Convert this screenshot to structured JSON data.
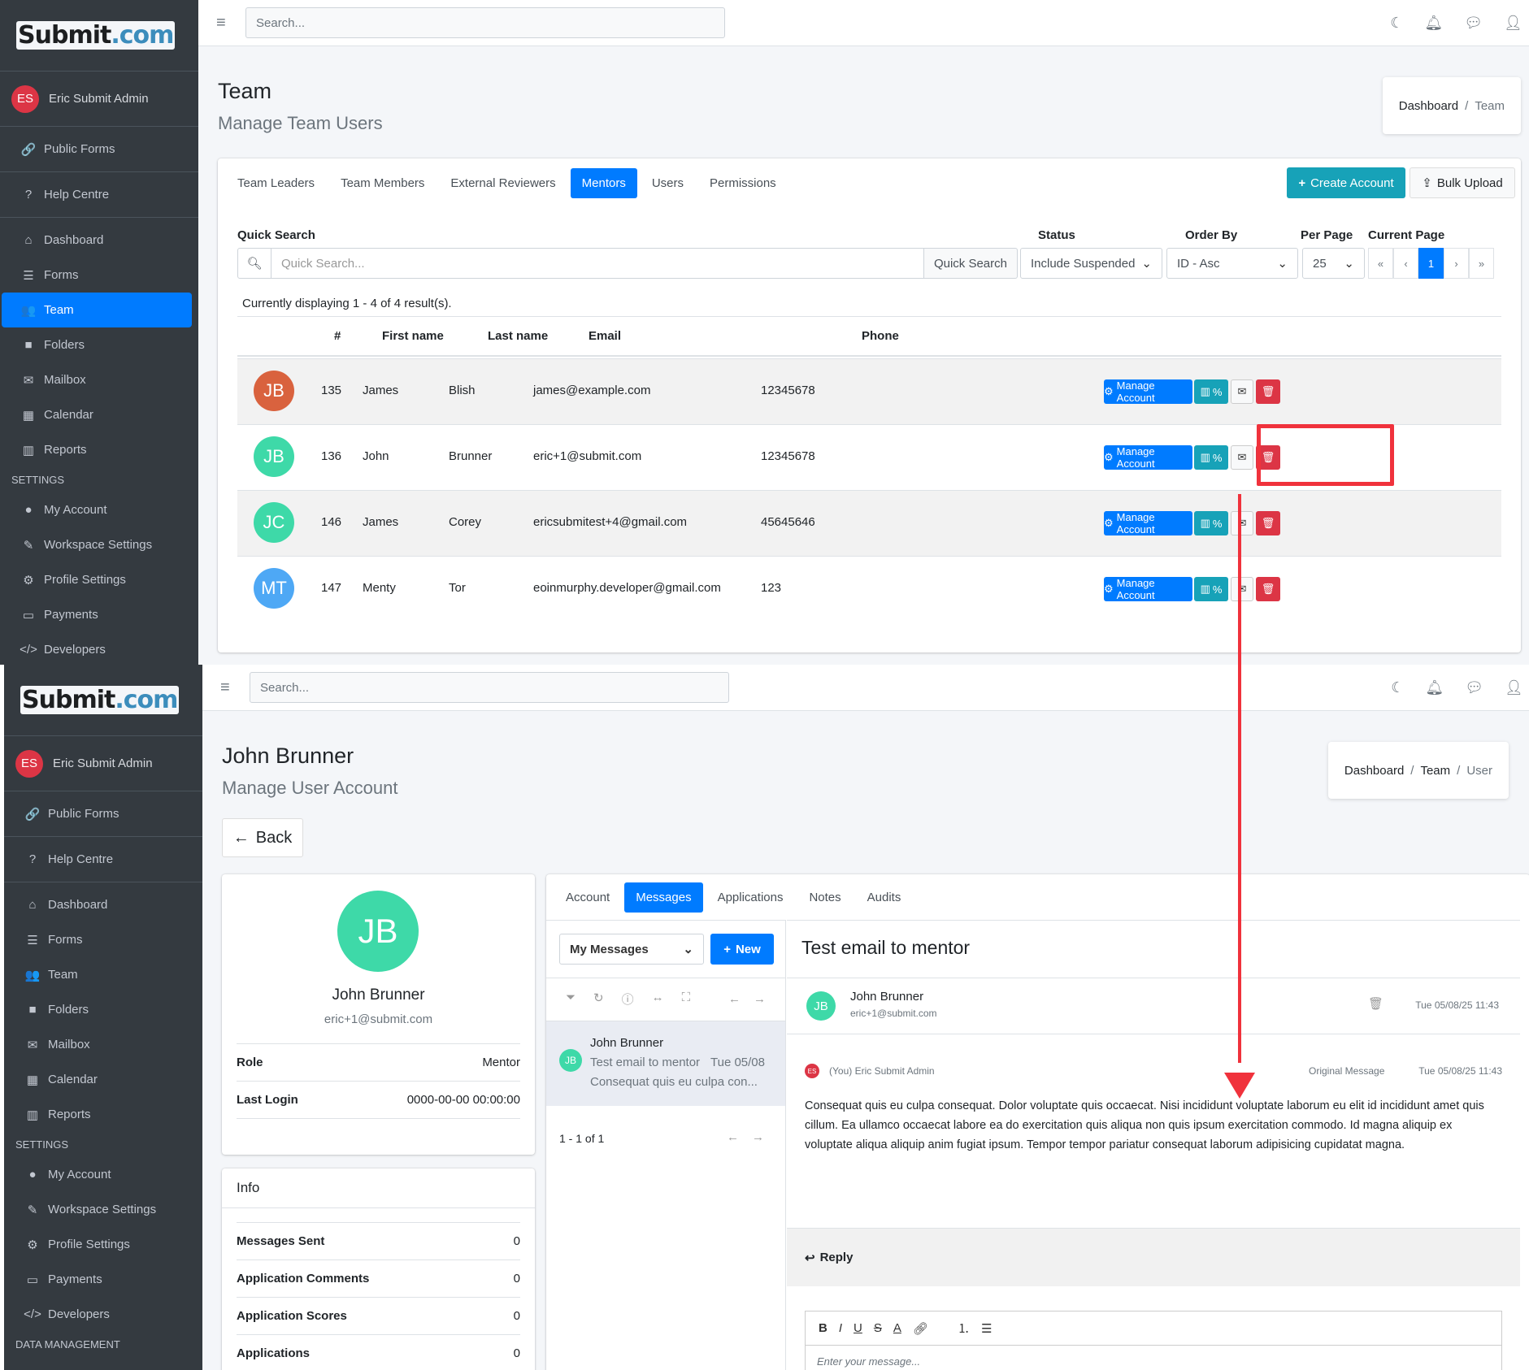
{
  "brand": {
    "name": "Submit",
    "suffix": ".com"
  },
  "sidebar": {
    "user": {
      "initials": "ES",
      "name": "Eric Submit Admin"
    },
    "top": [
      {
        "label": "Public Forms",
        "icon": "link-icon"
      },
      {
        "label": "Help Centre",
        "icon": "question-icon"
      }
    ],
    "main": [
      {
        "label": "Dashboard",
        "icon": "home-icon"
      },
      {
        "label": "Forms",
        "icon": "list-icon"
      },
      {
        "label": "Team",
        "icon": "users-icon"
      },
      {
        "label": "Folders",
        "icon": "folder-icon"
      },
      {
        "label": "Mailbox",
        "icon": "envelope-icon"
      },
      {
        "label": "Calendar",
        "icon": "calendar-icon"
      },
      {
        "label": "Reports",
        "icon": "chart-icon"
      }
    ],
    "settings_header": "SETTINGS",
    "settings": [
      {
        "label": "My Account",
        "icon": "user-circle-icon"
      },
      {
        "label": "Workspace Settings",
        "icon": "brush-icon"
      },
      {
        "label": "Profile Settings",
        "icon": "gear-icon"
      },
      {
        "label": "Payments",
        "icon": "money-icon"
      },
      {
        "label": "Developers",
        "icon": "code-icon"
      }
    ],
    "data_header": "DATA MANAGEMENT",
    "active_top": "Team"
  },
  "topbar": {
    "search_placeholder": "Search..."
  },
  "team_page": {
    "title": "Team",
    "subtitle": "Manage Team Users",
    "breadcrumb": [
      "Dashboard",
      "Team"
    ],
    "tabs": [
      "Team Leaders",
      "Team Members",
      "External Reviewers",
      "Mentors",
      "Users",
      "Permissions"
    ],
    "active_tab": "Mentors",
    "create_label": "Create Account",
    "bulk_label": "Bulk Upload",
    "quick_search_label": "Quick Search",
    "quick_search_placeholder": "Quick Search...",
    "quick_search_button": "Quick Search",
    "status_label": "Status",
    "status_value": "Include Suspended",
    "order_label": "Order By",
    "order_value": "ID - Asc",
    "per_page_label": "Per Page",
    "per_page_value": "25",
    "current_page_label": "Current Page",
    "pagination": [
      "«",
      "‹",
      "1",
      "›",
      "»"
    ],
    "result_text": "Currently displaying 1 - 4 of 4 result(s).",
    "columns": [
      "#",
      "First name",
      "Last name",
      "Email",
      "Phone"
    ],
    "rows": [
      {
        "initials": "JB",
        "color": "#d9623e",
        "id": "135",
        "first": "James",
        "last": "Blish",
        "email": "james@example.com",
        "phone": "12345678"
      },
      {
        "initials": "JB",
        "color": "#3ed9a8",
        "id": "136",
        "first": "John",
        "last": "Brunner",
        "email": "eric+1@submit.com",
        "phone": "12345678"
      },
      {
        "initials": "JC",
        "color": "#3ed9a8",
        "id": "146",
        "first": "James",
        "last": "Corey",
        "email": "ericsubmitest+4@gmail.com",
        "phone": "45645646"
      },
      {
        "initials": "MT",
        "color": "#4ea8f5",
        "id": "147",
        "first": "Menty",
        "last": "Tor",
        "email": "eoinmurphy.developer@gmail.com",
        "phone": "123"
      }
    ],
    "manage_label": "Manage Account",
    "stats_label": "%"
  },
  "user_page": {
    "title": "John Brunner",
    "subtitle": "Manage User Account",
    "breadcrumb": [
      "Dashboard",
      "Team",
      "User"
    ],
    "back_label": "Back",
    "profile": {
      "initials": "JB",
      "name": "John Brunner",
      "email": "eric+1@submit.com",
      "role_label": "Role",
      "role": "Mentor",
      "login_label": "Last Login",
      "login": "0000-00-00 00:00:00"
    },
    "info_title": "Info",
    "info": [
      {
        "label": "Messages Sent",
        "value": "0"
      },
      {
        "label": "Application Comments",
        "value": "0"
      },
      {
        "label": "Application Scores",
        "value": "0"
      },
      {
        "label": "Applications",
        "value": "0"
      }
    ],
    "tabs": [
      "Account",
      "Messages",
      "Applications",
      "Notes",
      "Audits"
    ],
    "active_tab": "Messages",
    "folder_select": "My Messages",
    "new_label": "New",
    "message_item": {
      "initials": "JB",
      "from": "John Brunner",
      "subject": "Test email to mentor",
      "date": "Tue 05/08",
      "preview": "Consequat quis eu culpa con..."
    },
    "list_count": "1 - 1 of 1",
    "message": {
      "subject": "Test email to mentor",
      "to_name": "John Brunner",
      "to_email": "eric+1@submit.com",
      "date": "Tue 05/08/25 11:43",
      "sender_initials": "ES",
      "sender": "(You) Eric Submit Admin",
      "original_label": "Original Message",
      "original_date": "Tue 05/08/25 11:43",
      "body": "Consequat quis eu culpa consequat. Dolor voluptate quis occaecat. Nisi incididunt voluptate laborum eu elit id incididunt amet quis cillum. Ea ullamco occaecat labore ea do exercitation quis aliqua non quis ipsum exercitation commodo. Id magna aliquip ex voluptate aliqua aliquip anim fugiat ipsum. Tempor tempor pariatur consequat laborum adipisicing cupidatat magna.",
      "reply_label": "Reply",
      "editor_placeholder": "Enter your message..."
    }
  }
}
